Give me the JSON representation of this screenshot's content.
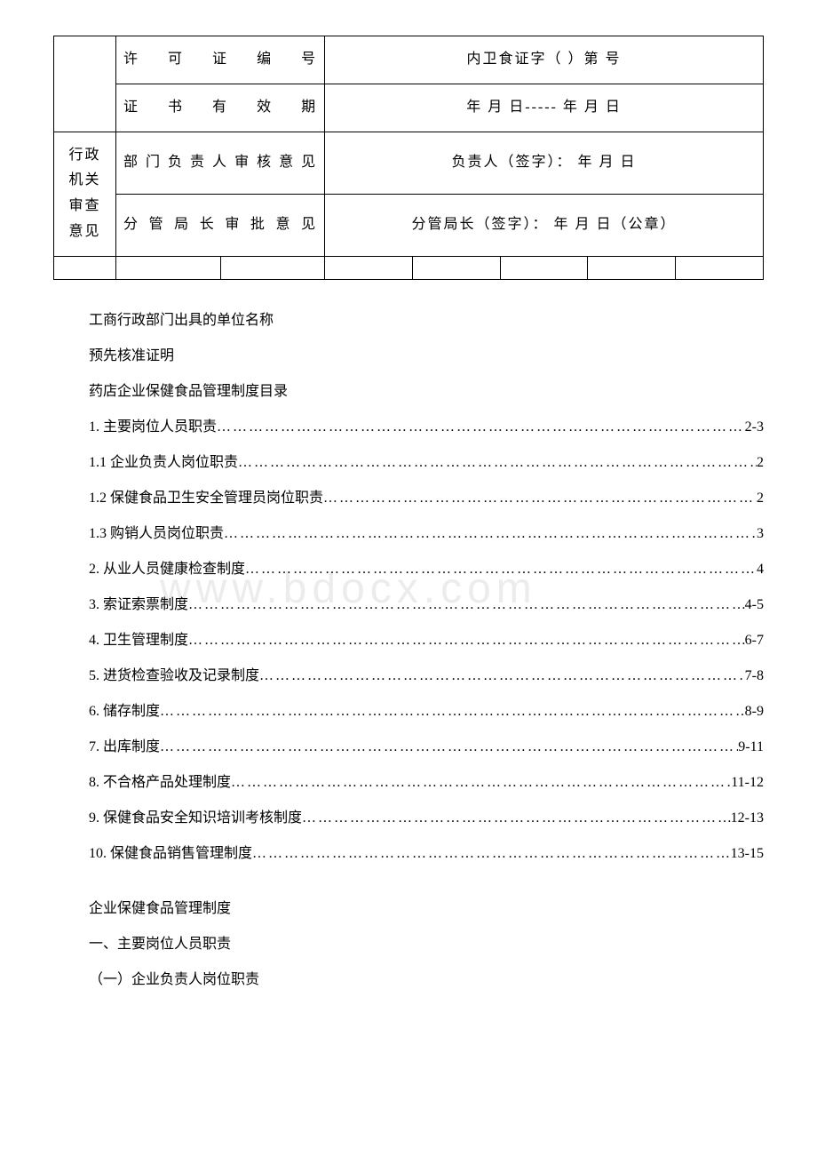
{
  "table": {
    "license_no_label": "许可证编号",
    "license_no_value": "内卫食证字（ ）第  号",
    "validity_label": "证书有效期",
    "validity_value": "年 月 日----- 年 月 日",
    "admin_label": "行政机关审查意见",
    "dept_label": "部门负责人审核意见",
    "dept_value": "负责人（签字）：  年 月 日",
    "director_label": "分管局长审批意见",
    "director_value": "分管局长（签字）：  年 月 日（公章）"
  },
  "prelude": {
    "line1": "工商行政部门出具的单位名称",
    "line2": "预先核准证明",
    "line3": "药店企业保健食品管理制度目录"
  },
  "toc": [
    {
      "title": "1. 主要岗位人员职责",
      "page": "2-3"
    },
    {
      "title": " 1.1 企业负责人岗位职责",
      "page": "2"
    },
    {
      "title": " 1.2 保健食品卫生安全管理员岗位职责",
      "page": "2"
    },
    {
      "title": " 1.3 购销人员岗位职责",
      "page": "3"
    },
    {
      "title": "2. 从业人员健康检查制度",
      "page": "4"
    },
    {
      "title": "3. 索证索票制度",
      "page": "4-5"
    },
    {
      "title": "4. 卫生管理制度",
      "page": "6-7"
    },
    {
      "title": "5. 进货检查验收及记录制度",
      "page": "7-8"
    },
    {
      "title": "6. 储存制度",
      "page": "8-9"
    },
    {
      "title": "7. 出库制度",
      "page": "9-11"
    },
    {
      "title": "8. 不合格产品处理制度",
      "page": "11-12"
    },
    {
      "title": "9. 保健食品安全知识培训考核制度",
      "page": " 12-13"
    },
    {
      "title": "10. 保健食品销售管理制度",
      "page": "13-15"
    }
  ],
  "section": {
    "heading1": "企业保健食品管理制度",
    "heading2": "一、主要岗位人员职责",
    "heading3": "（一）企业负责人岗位职责"
  }
}
